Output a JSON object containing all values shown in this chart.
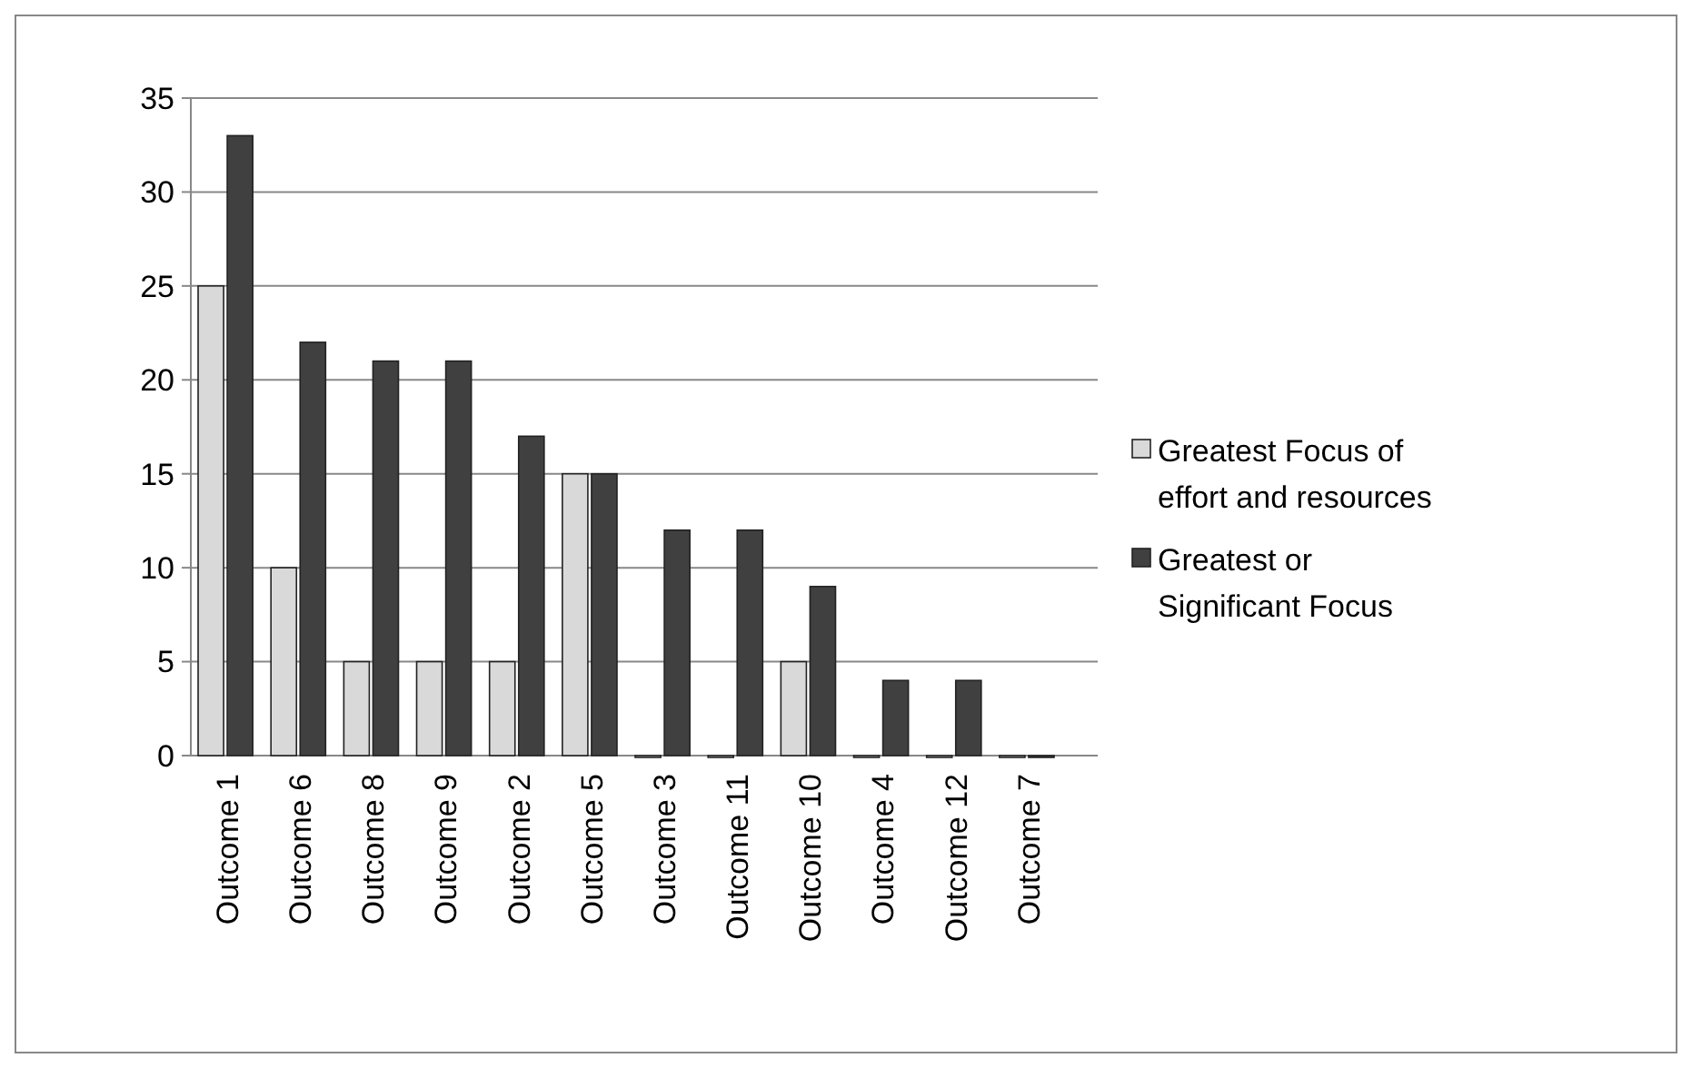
{
  "chart_data": {
    "type": "bar",
    "categories": [
      "Outcome 1",
      "Outcome 6",
      "Outcome 8",
      "Outcome 9",
      "Outcome 2",
      "Outcome 5",
      "Outcome 3",
      "Outcome 11",
      "Outcome 10",
      "Outcome 4",
      "Outcome 12",
      "Outcome 7"
    ],
    "series": [
      {
        "name": "Greatest Focus of effort and resources",
        "color": "#d9d9d9",
        "values": [
          25,
          10,
          5,
          5,
          5,
          15,
          0,
          0,
          5,
          0,
          0,
          0
        ]
      },
      {
        "name": "Greatest or Significant Focus",
        "color": "#404040",
        "values": [
          33,
          22,
          21,
          21,
          17,
          15,
          12,
          12,
          9,
          4,
          4,
          0
        ]
      }
    ],
    "ylim": [
      0,
      35
    ],
    "yticks": [
      0,
      5,
      10,
      15,
      20,
      25,
      30,
      35
    ],
    "grid": "y",
    "legend": "right"
  }
}
